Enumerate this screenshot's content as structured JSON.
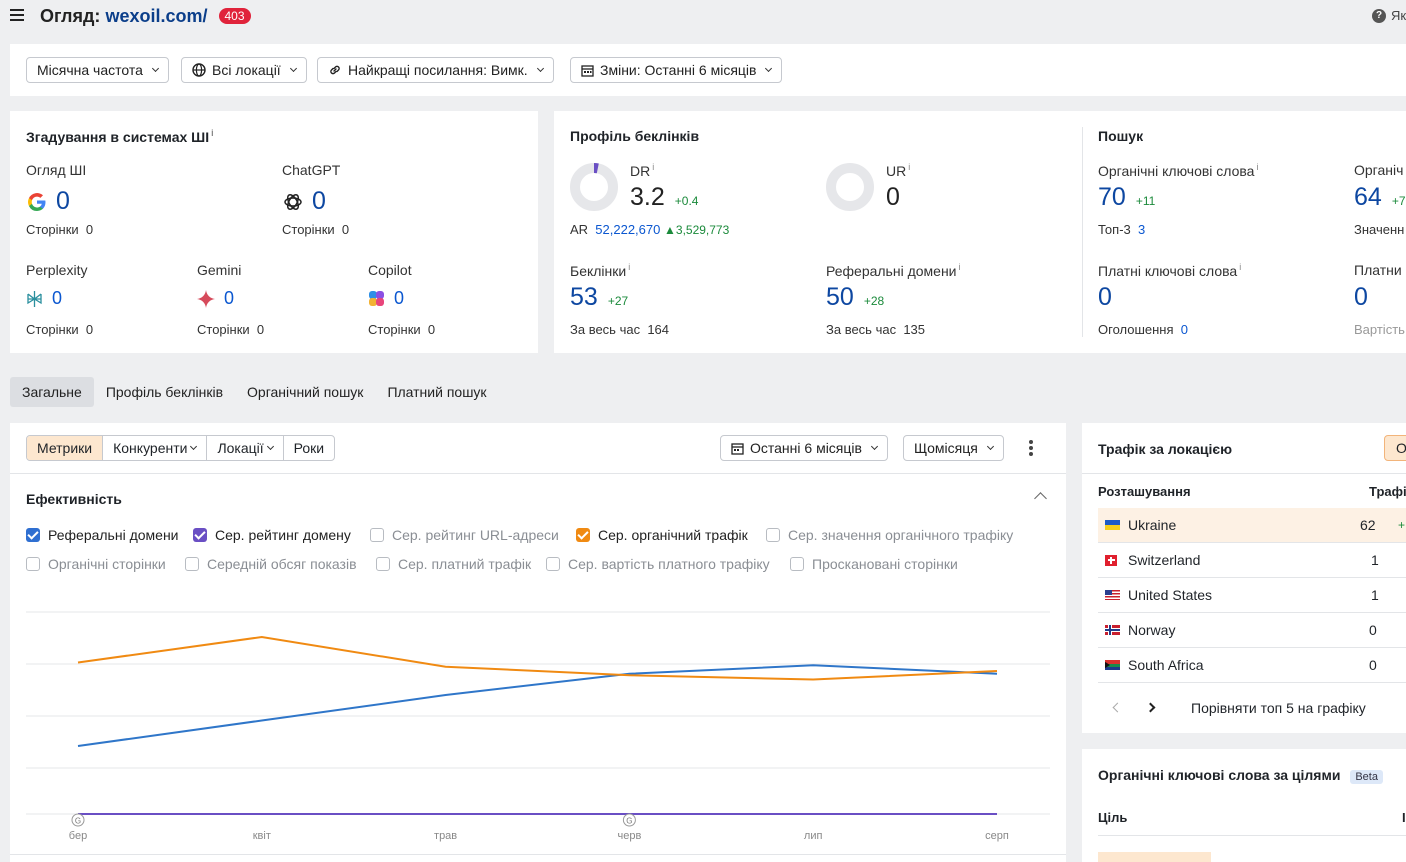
{
  "header": {
    "title_prefix": "Огляд:",
    "domain": "wexoil.com/",
    "status_badge": "403",
    "help_text": "Як"
  },
  "filters": {
    "frequency": "Місячна частота",
    "locations": "Всі локації",
    "best_links": "Найкращі посилання: Вимк.",
    "changes": "Зміни: Останні 6 місяців"
  },
  "ai_mentions": {
    "title": "Згадування в системах ШІ",
    "items": [
      {
        "name": "Огляд ШІ",
        "value": "0",
        "pages_label": "Сторінки",
        "pages": "0"
      },
      {
        "name": "ChatGPT",
        "value": "0",
        "pages_label": "Сторінки",
        "pages": "0"
      },
      {
        "name": "Perplexity",
        "value": "0",
        "pages_label": "Сторінки",
        "pages": "0"
      },
      {
        "name": "Gemini",
        "value": "0",
        "pages_label": "Сторінки",
        "pages": "0"
      },
      {
        "name": "Copilot",
        "value": "0",
        "pages_label": "Сторінки",
        "pages": "0"
      }
    ]
  },
  "backlinks": {
    "title": "Профіль беклінків",
    "dr": {
      "label": "DR",
      "value": "3.2",
      "delta": "+0.4",
      "ar_label": "AR",
      "ar_value": "52,222,670",
      "ar_delta": "3,529,773",
      "fill": 0.032
    },
    "ur": {
      "label": "UR",
      "value": "0"
    },
    "backlinks": {
      "label": "Беклінки",
      "value": "53",
      "delta": "+27",
      "all_time_label": "За весь час",
      "all_time": "164"
    },
    "ref_domains": {
      "label": "Реферальні домени",
      "value": "50",
      "delta": "+28",
      "all_time_label": "За весь час",
      "all_time": "135"
    }
  },
  "search": {
    "title": "Пошук",
    "organic_kw": {
      "label": "Органічні ключові слова",
      "value": "70",
      "delta": "+11",
      "top3_label": "Топ-3",
      "top3": "3"
    },
    "organic_traffic": {
      "label": "Органіч",
      "value": "64",
      "delta": "+7",
      "sub": "Значенн"
    },
    "paid_kw": {
      "label": "Платні ключові слова",
      "value": "0",
      "ads_label": "Оголошення",
      "ads": "0"
    },
    "paid_traffic": {
      "label": "Платни",
      "value": "0",
      "sub": "Вартість"
    }
  },
  "tabs": [
    "Загальне",
    "Профіль беклінків",
    "Органічний пошук",
    "Платний пошук"
  ],
  "chart_panel": {
    "segments": [
      "Метрики",
      "Конкуренти",
      "Локації",
      "Роки"
    ],
    "range": "Останні 6 місяців",
    "interval": "Щомісяця",
    "section_title": "Ефективність",
    "checkboxes_row1": [
      {
        "label": "Реферальні домени",
        "checked": true,
        "color": "#2f6fd1"
      },
      {
        "label": "Сер. рейтинг домену",
        "checked": true,
        "color": "#6a4fc4"
      },
      {
        "label": "Сер. рейтинг URL-адреси",
        "checked": false
      },
      {
        "label": "Сер. органічний трафік",
        "checked": true,
        "color": "#f08a12"
      },
      {
        "label": "Сер. значення органічного трафіку",
        "checked": false
      }
    ],
    "checkboxes_row2": [
      {
        "label": "Органічні сторінки",
        "checked": false
      },
      {
        "label": "Середній обсяг показів",
        "checked": false
      },
      {
        "label": "Сер. платний трафік",
        "checked": false
      },
      {
        "label": "Сер. вартість платного трафіку",
        "checked": false
      },
      {
        "label": "Проскановані сторінки",
        "checked": false
      }
    ]
  },
  "chart_data": {
    "type": "line",
    "categories": [
      "бер",
      "квіт",
      "трав",
      "черв",
      "лип",
      "серп"
    ],
    "series": [
      {
        "name": "Реферальні домени",
        "color": "#2f76c9",
        "values": [
          36,
          42,
          48,
          53,
          55,
          53
        ]
      },
      {
        "name": "Сер. рейтинг домену",
        "color": "#6a4fc4",
        "values": [
          3.2,
          3.2,
          3.2,
          3.2,
          3.2,
          3.2
        ]
      },
      {
        "name": "Сер. органічний трафік",
        "color": "#f08a12",
        "values": [
          62,
          68,
          61,
          59,
          58,
          60
        ]
      }
    ],
    "annotations": [
      {
        "category": "бер",
        "marker": "G"
      },
      {
        "category": "черв",
        "marker": "G"
      }
    ],
    "grid": true
  },
  "traffic_by_location": {
    "title": "Трафік за локацією",
    "col_location": "Розташування",
    "col_traffic": "Трафі",
    "rows": [
      {
        "country": "Ukraine",
        "value": "62",
        "delta": "+"
      },
      {
        "country": "Switzerland",
        "value": "1"
      },
      {
        "country": "United States",
        "value": "1"
      },
      {
        "country": "Norway",
        "value": "0"
      },
      {
        "country": "South Africa",
        "value": "0"
      }
    ],
    "compare_label": "Порівняти топ 5 на графіку",
    "top_button": "О"
  },
  "keywords_by_intent": {
    "title": "Органічні ключові слова за цілями",
    "beta": "Beta",
    "col_intent": "Ціль",
    "col_right": "І"
  }
}
